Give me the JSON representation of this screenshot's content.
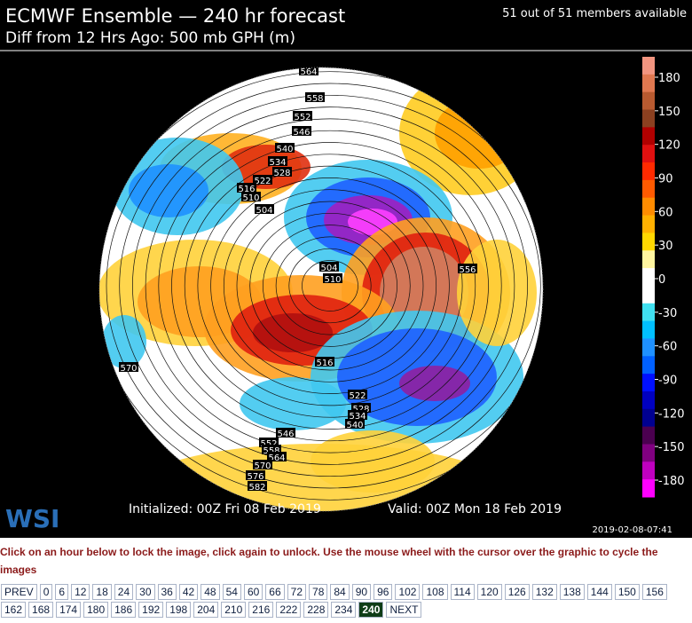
{
  "header": {
    "title": "ECMWF Ensemble — 240 hr forecast",
    "subtitle": "Diff from 12 Hrs Ago: 500 mb GPH (m)",
    "members": "51 out of 51 members available"
  },
  "colorbar": {
    "ticks": [
      180,
      150,
      120,
      90,
      60,
      30,
      0,
      -30,
      -60,
      -90,
      -120,
      -150,
      -180
    ]
  },
  "contour_labels": [
    564,
    558,
    552,
    546,
    540,
    534,
    528,
    522,
    516,
    510,
    504,
    504,
    510,
    556,
    570,
    516,
    522,
    528,
    534,
    540,
    546,
    552,
    558,
    564,
    570,
    576,
    582
  ],
  "footer": {
    "logo": "WSI",
    "initialized": "Initialized: 00Z Fri 08 Feb 2019",
    "valid": "Valid: 00Z Mon 18 Feb 2019",
    "timestamp": "2019-02-08-07:41"
  },
  "instructions": "Click on an hour below to lock the image, click again to unlock. Use the mouse wheel with the cursor over the graphic to cycle the images",
  "nav": {
    "prev": "PREV",
    "next": "NEXT",
    "selected_hour": 240,
    "hours": [
      0,
      6,
      12,
      18,
      24,
      30,
      36,
      42,
      48,
      54,
      60,
      66,
      72,
      78,
      84,
      90,
      96,
      102,
      108,
      114,
      120,
      126,
      132,
      138,
      144,
      150,
      156,
      162,
      168,
      174,
      180,
      186,
      192,
      198,
      204,
      210,
      216,
      222,
      228,
      234,
      240
    ]
  }
}
